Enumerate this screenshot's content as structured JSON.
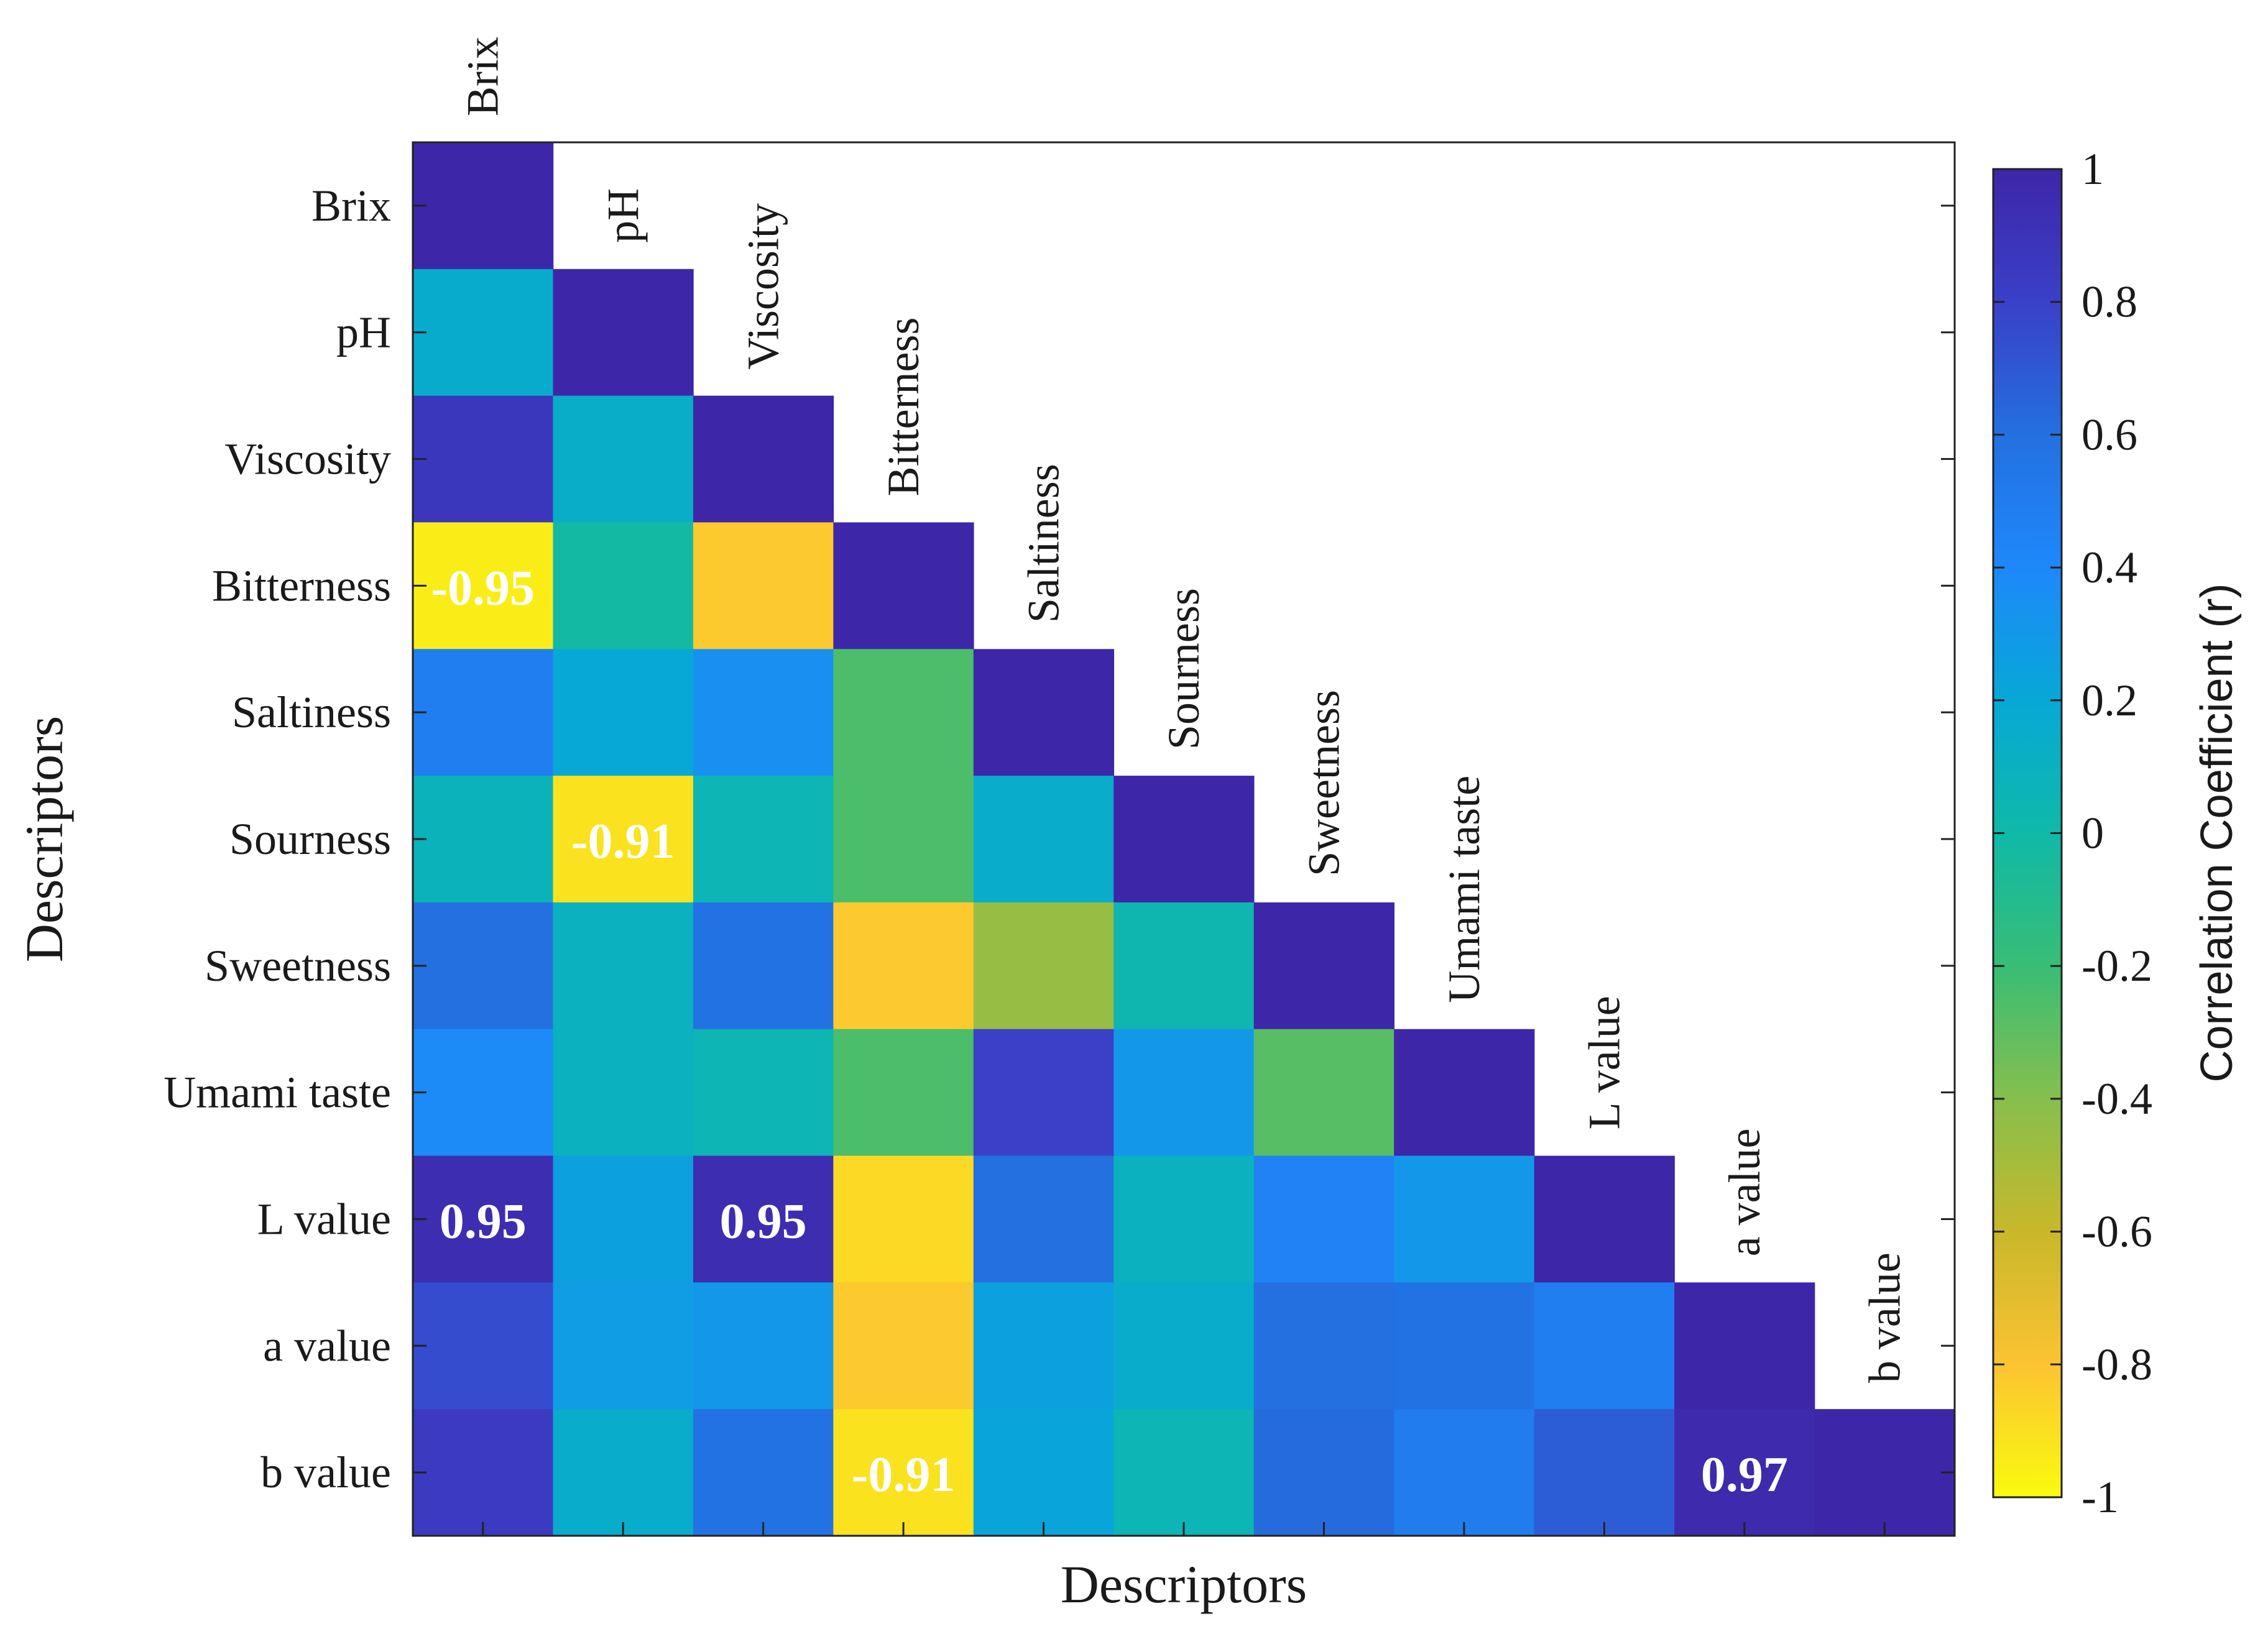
{
  "chart_data": {
    "type": "heatmap",
    "variant": "lower-triangular correlation matrix",
    "xlabel": "Descriptors",
    "ylabel": "Descriptors",
    "variables": [
      "Brix",
      "pH",
      "Viscosity",
      "Bitterness",
      "Saltiness",
      "Sourness",
      "Sweetness",
      "Umami taste",
      "L value",
      "a value",
      "b value"
    ],
    "matrix": [
      [
        1
      ],
      [
        0.16,
        1
      ],
      [
        0.87,
        0.14,
        1
      ],
      [
        -0.95,
        -0.02,
        -0.82,
        1
      ],
      [
        0.48,
        0.2,
        0.35,
        -0.25,
        1
      ],
      [
        0.08,
        -0.91,
        0.05,
        -0.25,
        0.15,
        1
      ],
      [
        0.6,
        0.1,
        0.58,
        -0.82,
        -0.45,
        0.03,
        1
      ],
      [
        0.38,
        0.1,
        0.05,
        -0.25,
        0.8,
        0.3,
        -0.28,
        1
      ],
      [
        0.95,
        0.25,
        0.95,
        -0.88,
        0.6,
        0.1,
        0.45,
        0.3,
        1
      ],
      [
        0.75,
        0.27,
        0.3,
        -0.82,
        0.25,
        0.15,
        0.6,
        0.58,
        0.48,
        1
      ],
      [
        0.85,
        0.15,
        0.58,
        -0.91,
        0.22,
        0.05,
        0.62,
        0.5,
        0.68,
        0.97,
        1
      ]
    ],
    "annotations": [
      {
        "row": "Bitterness",
        "col": "Brix",
        "text": "-0.95"
      },
      {
        "row": "Sourness",
        "col": "pH",
        "text": "-0.91"
      },
      {
        "row": "L value",
        "col": "Brix",
        "text": "0.95"
      },
      {
        "row": "L value",
        "col": "Viscosity",
        "text": "0.95"
      },
      {
        "row": "b value",
        "col": "Bitterness",
        "text": "-0.91"
      },
      {
        "row": "b value",
        "col": "a value",
        "text": "0.97"
      }
    ],
    "colorbar": {
      "label": "Correlation Coefficient (r)",
      "range": [
        -1,
        1
      ],
      "ticks": [
        "1",
        "0.8",
        "0.6",
        "0.4",
        "0.2",
        "0",
        "-0.2",
        "-0.4",
        "-0.6",
        "-0.8",
        "-1"
      ],
      "colormap": "parula",
      "stops": [
        "#f9fb0e",
        "#fcc332",
        "#c8b82a",
        "#86bf4d",
        "#38bd75",
        "#0fb9a8",
        "#07a8d6",
        "#1e88fb",
        "#2470e0",
        "#3a40c8",
        "#3e26a8"
      ]
    }
  }
}
